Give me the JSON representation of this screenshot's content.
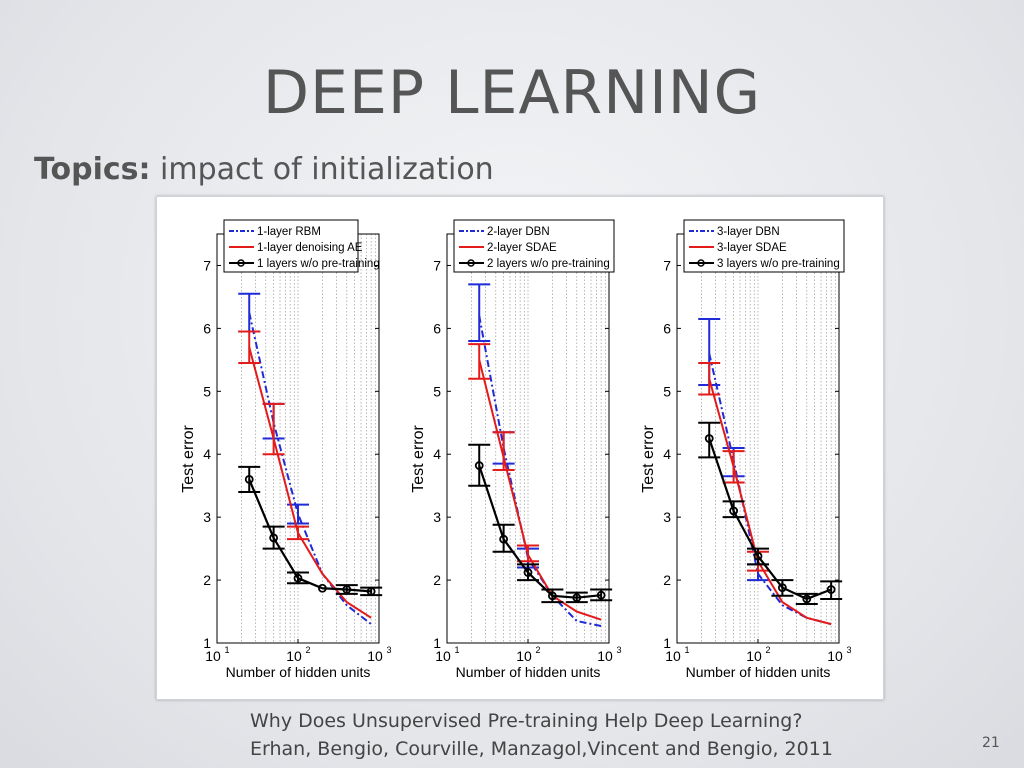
{
  "slide": {
    "title": "DEEP LEARNING",
    "topics_label": "Topics:",
    "topics_text": "impact of initialization",
    "citation_line1": "Why Does Unsupervised Pre-training Help Deep Learning?",
    "citation_line2": "Erhan, Bengio, Courville, Manzagol,Vincent and Bengio, 2011",
    "page_number": "21"
  },
  "colors": {
    "rbm": "#1f2bd6",
    "sdae": "#e31b1b",
    "none": "#000000"
  },
  "chart_data": [
    {
      "type": "line",
      "xscale": "log",
      "xlabel": "Number of hidden units",
      "ylabel": "Test error",
      "xlim": [
        10,
        1000
      ],
      "ylim": [
        1,
        7.5
      ],
      "xticks": [
        10,
        100,
        1000
      ],
      "yticks": [
        1,
        2,
        3,
        4,
        5,
        6,
        7
      ],
      "grid": "x-minor",
      "legend": "top",
      "x": [
        25,
        50,
        100,
        200,
        400,
        800
      ],
      "series": [
        {
          "name": "1-layer RBM",
          "style": "dash-dot",
          "color": "#1f2bd6",
          "values": [
            6.25,
            4.5,
            3.05,
            2.1,
            1.6,
            1.3
          ],
          "err": [
            [
              25,
              5.95,
              6.55
            ],
            [
              50,
              4.25,
              4.8
            ],
            [
              100,
              2.9,
              3.2
            ]
          ]
        },
        {
          "name": "1-layer denoising AE",
          "style": "solid",
          "color": "#e31b1b",
          "values": [
            5.7,
            4.25,
            2.75,
            2.1,
            1.65,
            1.4
          ],
          "err": [
            [
              25,
              5.45,
              5.95
            ],
            [
              50,
              4.0,
              4.8
            ],
            [
              100,
              2.65,
              2.85
            ]
          ]
        },
        {
          "name": "1 layers w/o pre-training",
          "style": "solid-circle",
          "color": "#000000",
          "values": [
            3.6,
            2.67,
            2.03,
            1.87,
            1.85,
            1.82
          ],
          "err": [
            [
              25,
              3.4,
              3.8
            ],
            [
              50,
              2.5,
              2.85
            ],
            [
              100,
              1.95,
              2.12
            ],
            [
              400,
              1.78,
              1.92
            ],
            [
              800,
              1.76,
              1.88
            ]
          ]
        }
      ]
    },
    {
      "type": "line",
      "xscale": "log",
      "xlabel": "Number of hidden units",
      "ylabel": "Test error",
      "xlim": [
        10,
        1000
      ],
      "ylim": [
        1,
        7.5
      ],
      "xticks": [
        10,
        100,
        1000
      ],
      "yticks": [
        1,
        2,
        3,
        4,
        5,
        6,
        7
      ],
      "grid": "x-minor",
      "legend": "top",
      "x": [
        25,
        50,
        100,
        200,
        400,
        800
      ],
      "series": [
        {
          "name": "2-layer DBN",
          "style": "dash-dot",
          "color": "#1f2bd6",
          "values": [
            6.2,
            4.1,
            2.35,
            1.75,
            1.35,
            1.27
          ],
          "err": [
            [
              25,
              5.8,
              6.7
            ],
            [
              50,
              3.85,
              4.35
            ],
            [
              100,
              2.2,
              2.5
            ]
          ]
        },
        {
          "name": "2-layer SDAE",
          "style": "solid",
          "color": "#e31b1b",
          "values": [
            5.5,
            3.95,
            2.4,
            1.75,
            1.5,
            1.37
          ],
          "err": [
            [
              25,
              5.2,
              5.75
            ],
            [
              50,
              3.75,
              4.35
            ],
            [
              100,
              2.3,
              2.55
            ]
          ]
        },
        {
          "name": "2 layers w/o pre-training",
          "style": "solid-circle",
          "color": "#000000",
          "values": [
            3.82,
            2.65,
            2.12,
            1.75,
            1.72,
            1.76
          ],
          "err": [
            [
              25,
              3.5,
              4.15
            ],
            [
              50,
              2.45,
              2.88
            ],
            [
              100,
              2.0,
              2.25
            ],
            [
              200,
              1.65,
              1.85
            ],
            [
              400,
              1.65,
              1.8
            ],
            [
              800,
              1.68,
              1.85
            ]
          ]
        }
      ]
    },
    {
      "type": "line",
      "xscale": "log",
      "xlabel": "Number of hidden units",
      "ylabel": "Test error",
      "xlim": [
        10,
        1000
      ],
      "ylim": [
        1,
        7.5
      ],
      "xticks": [
        10,
        100,
        1000
      ],
      "yticks": [
        1,
        2,
        3,
        4,
        5,
        6,
        7
      ],
      "grid": "x-minor",
      "legend": "top",
      "x": [
        25,
        50,
        100,
        200,
        400,
        800
      ],
      "series": [
        {
          "name": "3-layer DBN",
          "style": "dash-dot",
          "color": "#1f2bd6",
          "values": [
            5.6,
            3.9,
            2.1,
            1.6,
            1.4,
            1.3
          ],
          "err": [
            [
              25,
              5.1,
              6.15
            ],
            [
              50,
              3.65,
              4.1
            ],
            [
              100,
              2.0,
              2.25
            ]
          ]
        },
        {
          "name": "3-layer SDAE",
          "style": "solid",
          "color": "#e31b1b",
          "values": [
            5.2,
            3.8,
            2.3,
            1.65,
            1.4,
            1.3
          ],
          "err": [
            [
              25,
              4.95,
              5.45
            ],
            [
              50,
              3.55,
              4.05
            ],
            [
              100,
              2.15,
              2.45
            ]
          ]
        },
        {
          "name": "3 layers w/o pre-training",
          "style": "solid-circle",
          "color": "#000000",
          "values": [
            4.25,
            3.1,
            2.38,
            1.88,
            1.7,
            1.85
          ],
          "err": [
            [
              25,
              3.95,
              4.5
            ],
            [
              50,
              3.0,
              3.25
            ],
            [
              100,
              2.25,
              2.5
            ],
            [
              200,
              1.75,
              2.0
            ],
            [
              400,
              1.62,
              1.78
            ],
            [
              800,
              1.7,
              1.98
            ]
          ]
        }
      ]
    }
  ]
}
